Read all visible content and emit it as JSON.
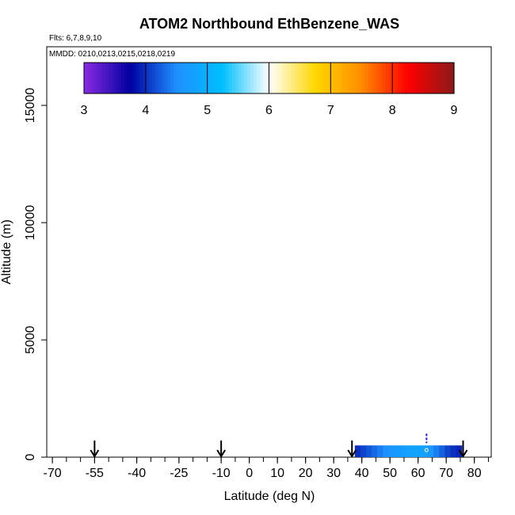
{
  "chart_data": {
    "type": "heatmap",
    "title": "ATOM2 Northbound EthBenzene_WAS",
    "flights_note": "Flts: 6,7,8,9,10",
    "dates_note": "MMDD: 0210,0213,0215,0218,0219",
    "xlabel": "Latitude (deg N)",
    "ylabel": "Altitude (m)",
    "xlim": [
      -72,
      86
    ],
    "ylim": [
      0,
      17500
    ],
    "x_ticks": [
      -70,
      -55,
      -40,
      -25,
      -10,
      0,
      10,
      20,
      30,
      40,
      50,
      60,
      70,
      80
    ],
    "x_minor_step": 5,
    "y_ticks": [
      0,
      5000,
      10000,
      15000
    ],
    "colorbar": {
      "min": 3,
      "max": 9,
      "ticks": [
        3,
        4,
        5,
        6,
        7,
        8,
        9
      ],
      "colors": [
        "#8a2be2",
        "#0000a0",
        "#1e90ff",
        "#00bfff",
        "#ffffff",
        "#ffd700",
        "#ff8c00",
        "#ff0000",
        "#8b1a1a"
      ]
    },
    "arrows_latitude": [
      -55,
      -10,
      36.5,
      76
    ],
    "cells": [
      {
        "lat": 38.5,
        "value": 4.0
      },
      {
        "lat": 40.5,
        "value": 4.1
      },
      {
        "lat": 42.5,
        "value": 4.2
      },
      {
        "lat": 44.5,
        "value": 4.3
      },
      {
        "lat": 46.5,
        "value": 4.4
      },
      {
        "lat": 48.5,
        "value": 4.5
      },
      {
        "lat": 50.5,
        "value": 4.6
      },
      {
        "lat": 52.5,
        "value": 4.65
      },
      {
        "lat": 54.5,
        "value": 4.7
      },
      {
        "lat": 56.5,
        "value": 4.75
      },
      {
        "lat": 58.5,
        "value": 4.8
      },
      {
        "lat": 60.5,
        "value": 4.8
      },
      {
        "lat": 62.5,
        "value": 4.75
      },
      {
        "lat": 64.5,
        "value": 4.6
      },
      {
        "lat": 66.5,
        "value": 4.4
      },
      {
        "lat": 68.5,
        "value": 4.25
      },
      {
        "lat": 70.5,
        "value": 4.1
      },
      {
        "lat": 72.5,
        "value": 4.0
      },
      {
        "lat": 74.5,
        "value": 3.95
      }
    ],
    "cell_alt_range": [
      0,
      500
    ],
    "point": {
      "lat": 63,
      "alt": 300,
      "value": 4.8
    },
    "profile": {
      "lat": 63,
      "alt_range": [
        600,
        1000
      ]
    }
  }
}
